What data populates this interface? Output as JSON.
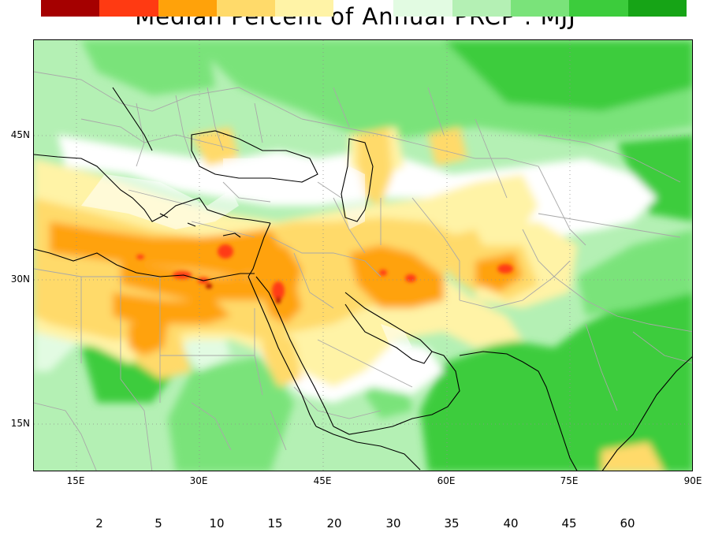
{
  "title": "Median Percent of Annual PRCP  :  MJJ",
  "latitude_labels": [
    "45N",
    "30N",
    "15N"
  ],
  "longitude_labels": [
    "15E",
    "30E",
    "45E",
    "60E",
    "75E",
    "90E"
  ],
  "colorbar": {
    "dry": [
      {
        "color": "#a50000"
      },
      {
        "color": "#ff3a12"
      },
      {
        "color": "#ffa20a"
      },
      {
        "color": "#ffda6a"
      },
      {
        "color": "#fff3a6"
      }
    ],
    "wet": [
      {
        "color": "#e2fbe2"
      },
      {
        "color": "#b4f0b4"
      },
      {
        "color": "#7ae37a"
      },
      {
        "color": "#3ccc3c"
      },
      {
        "color": "#16a416"
      }
    ],
    "labels_dry": [
      "2",
      "5",
      "10",
      "15",
      "20"
    ],
    "labels_wet": [
      "30",
      "35",
      "40",
      "45",
      "60"
    ]
  },
  "map": {
    "region": "Middle East, North Africa and South Asia",
    "lon_range": [
      10,
      90
    ],
    "lat_range": [
      10,
      50
    ],
    "colors": {
      "ocean_white": "#ffffff",
      "borders": "#a8a8a8",
      "coastlines": "#000000"
    }
  }
}
